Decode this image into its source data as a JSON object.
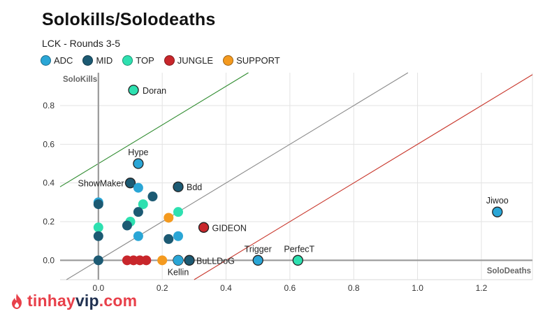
{
  "chart_data": {
    "type": "scatter",
    "title": "Solokills/Solodeaths",
    "subtitle": "LCK - Rounds 3-5",
    "xlabel": "SoloDeaths",
    "ylabel": "SoloKills",
    "xlim": [
      -0.12,
      1.36
    ],
    "ylim": [
      -0.1,
      0.97
    ],
    "x_ticks": [
      "0.0",
      "0.2",
      "0.4",
      "0.6",
      "0.8",
      "1.0",
      "1.2"
    ],
    "y_ticks": [
      "0.0",
      "0.2",
      "0.4",
      "0.6",
      "0.8"
    ],
    "grid": true,
    "legend_position": "top-left",
    "roles": [
      {
        "key": "ADC",
        "label": "ADC",
        "color": "#2aa6d6"
      },
      {
        "key": "MID",
        "label": "MID",
        "color": "#1c5a73"
      },
      {
        "key": "TOP",
        "label": "TOP",
        "color": "#2ee0b0"
      },
      {
        "key": "JUNGLE",
        "label": "JUNGLE",
        "color": "#c8262b"
      },
      {
        "key": "SUPPORT",
        "label": "SUPPORT",
        "color": "#f49a1f"
      }
    ],
    "reference_lines": [
      {
        "offset": 0.5,
        "color": "#2e8b2e"
      },
      {
        "offset": 0.0,
        "color": "#8a8a8a"
      },
      {
        "offset": -0.4,
        "color": "#c8362b"
      }
    ],
    "points": [
      {
        "x": 0.11,
        "y": 0.88,
        "role": "TOP",
        "label": "Doran"
      },
      {
        "x": 0.125,
        "y": 0.5,
        "role": "ADC",
        "label": "Hype"
      },
      {
        "x": 0.1,
        "y": 0.4,
        "role": "MID",
        "label": "ShowMaker"
      },
      {
        "x": 0.25,
        "y": 0.38,
        "role": "MID",
        "label": "Bdd"
      },
      {
        "x": 1.25,
        "y": 0.25,
        "role": "ADC",
        "label": "Jiwoo"
      },
      {
        "x": 0.33,
        "y": 0.17,
        "role": "JUNGLE",
        "label": "GIDEON"
      },
      {
        "x": 0.5,
        "y": 0.0,
        "role": "ADC",
        "label": "Trigger"
      },
      {
        "x": 0.625,
        "y": 0.0,
        "role": "TOP",
        "label": "PerfecT"
      },
      {
        "x": 0.285,
        "y": 0.0,
        "role": "MID",
        "label": "BuLLDoG"
      },
      {
        "x": 0.25,
        "y": 0.0,
        "role": "SUPPORT",
        "label": "Kellin"
      },
      {
        "x": 0.0,
        "y": 0.3,
        "role": "ADC",
        "label": ""
      },
      {
        "x": 0.0,
        "y": 0.29,
        "role": "MID",
        "label": ""
      },
      {
        "x": 0.0,
        "y": 0.17,
        "role": "TOP",
        "label": ""
      },
      {
        "x": 0.0,
        "y": 0.125,
        "role": "MID",
        "label": ""
      },
      {
        "x": 0.0,
        "y": 0.0,
        "role": "MID",
        "label": ""
      },
      {
        "x": 0.125,
        "y": 0.375,
        "role": "ADC",
        "label": ""
      },
      {
        "x": 0.17,
        "y": 0.33,
        "role": "MID",
        "label": ""
      },
      {
        "x": 0.14,
        "y": 0.29,
        "role": "TOP",
        "label": ""
      },
      {
        "x": 0.125,
        "y": 0.25,
        "role": "MID",
        "label": ""
      },
      {
        "x": 0.25,
        "y": 0.25,
        "role": "TOP",
        "label": ""
      },
      {
        "x": 0.22,
        "y": 0.22,
        "role": "SUPPORT",
        "label": ""
      },
      {
        "x": 0.1,
        "y": 0.2,
        "role": "TOP",
        "label": ""
      },
      {
        "x": 0.09,
        "y": 0.18,
        "role": "MID",
        "label": ""
      },
      {
        "x": 0.125,
        "y": 0.125,
        "role": "ADC",
        "label": ""
      },
      {
        "x": 0.22,
        "y": 0.11,
        "role": "MID",
        "label": ""
      },
      {
        "x": 0.25,
        "y": 0.125,
        "role": "ADC",
        "label": ""
      },
      {
        "x": 0.09,
        "y": 0.0,
        "role": "JUNGLE",
        "label": ""
      },
      {
        "x": 0.11,
        "y": 0.0,
        "role": "JUNGLE",
        "label": ""
      },
      {
        "x": 0.13,
        "y": 0.0,
        "role": "JUNGLE",
        "label": ""
      },
      {
        "x": 0.15,
        "y": 0.0,
        "role": "JUNGLE",
        "label": ""
      },
      {
        "x": 0.2,
        "y": 0.0,
        "role": "SUPPORT",
        "label": ""
      },
      {
        "x": 0.25,
        "y": 0.0,
        "role": "ADC",
        "label": ""
      }
    ]
  },
  "watermark": {
    "prefix": "tinhay",
    "accent": "vip",
    "suffix": ".com",
    "icon": "flame-icon"
  }
}
